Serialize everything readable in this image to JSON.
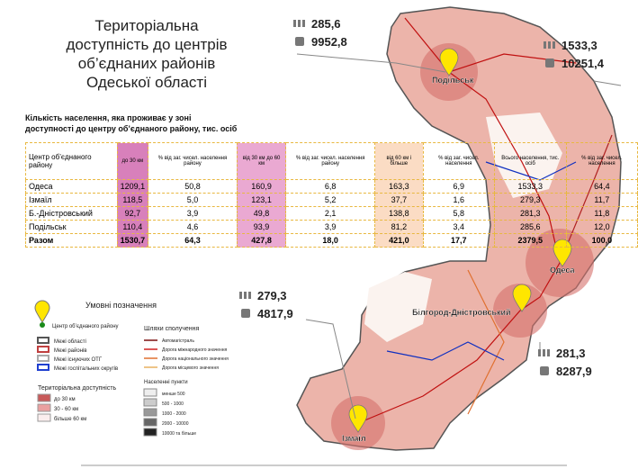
{
  "title": [
    "Територіальна",
    "доступність до центрів",
    "об’єднаних районів",
    "Одеської області"
  ],
  "table": {
    "caption": [
      "Кількість населення, яка проживає у зоні",
      "доступності до центру об’єднаного району, тис. осіб"
    ],
    "header": [
      "Центр об’єднаного району",
      "до 30 км",
      "% від заг. чисел. населення району",
      "від 30 км до 60 км",
      "% від заг. чисел. населення району",
      "від 60 км і більше",
      "% від заг. чисел. населення",
      "Всього населення, тис. осіб",
      "% від заг. чисел. населення"
    ],
    "rows": [
      [
        "Одеса",
        "1209,1",
        "50,8",
        "160,9",
        "6,8",
        "163,3",
        "6,9",
        "1533,3",
        "64,4"
      ],
      [
        "Ізмаїл",
        "118,5",
        "5,0",
        "123,1",
        "5,2",
        "37,7",
        "1,6",
        "279,3",
        "11,7"
      ],
      [
        "Б.-Дністровський",
        "92,7",
        "3,9",
        "49,8",
        "2,1",
        "138,8",
        "5,8",
        "281,3",
        "11,8"
      ],
      [
        "Подільськ",
        "110,4",
        "4,6",
        "93,9",
        "3,9",
        "81,2",
        "3,4",
        "285,6",
        "12,0"
      ],
      [
        "Разом",
        "1530,7",
        "64,3",
        "427,8",
        "18,0",
        "421,0",
        "17,7",
        "2379,5",
        "100,0"
      ]
    ]
  },
  "callouts": [
    {
      "population": "285,6",
      "area": "9952,8"
    },
    {
      "population": "1533,3",
      "area": "10251,4"
    },
    {
      "population": "279,3",
      "area": "4817,9"
    },
    {
      "population": "281,3",
      "area": "8287,9"
    }
  ],
  "cities": [
    "Подільськ",
    "Одеса",
    "Білгород-Дністровський",
    "Ізмаїл"
  ],
  "legend": {
    "title": "Умовні позначення",
    "center": "Центр об’єднаного району",
    "borders": [
      "Межі області",
      "Межі районів",
      "Межі існуючих ОТГ",
      "Межі госпітальних округів"
    ],
    "access_title": "Територіальна доступність",
    "access": [
      "до 30 км",
      "30 - 60 км",
      "більше 60 км"
    ],
    "roads_title": "Шляхи сполучення",
    "roads": [
      "Автомагістраль",
      "Дорога міжнародного значення",
      "Дорога національного значення",
      "Дорога місцевого значення"
    ],
    "settlements_title": "Населенні пункти",
    "settlements": [
      "менше 500",
      "500 - 1000",
      "1000 - 2000",
      "2000 - 10000",
      "10000 та більше"
    ]
  }
}
